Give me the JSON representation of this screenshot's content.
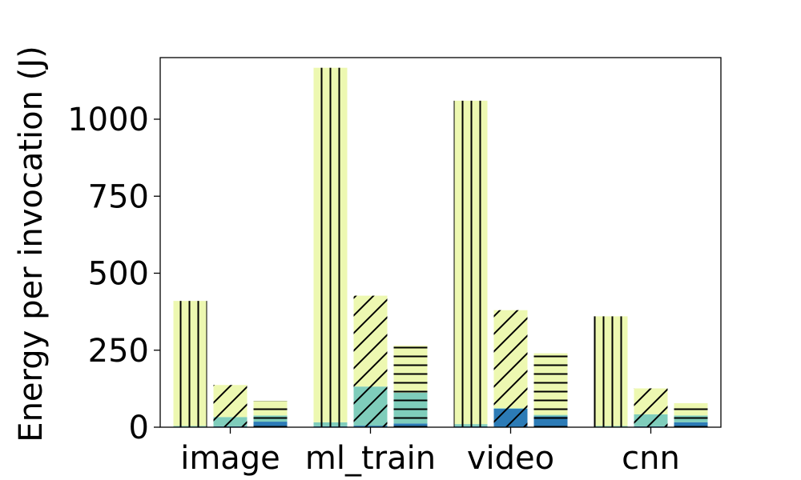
{
  "chart_data": {
    "type": "bar",
    "title": "",
    "xlabel": "",
    "ylabel": "Energy per invocation (J)",
    "ylim": [
      0,
      1200
    ],
    "yticks": [
      0,
      250,
      500,
      750,
      1000
    ],
    "grid": false,
    "legend": "none",
    "categories": [
      "image",
      "ml_train",
      "video",
      "cnn"
    ],
    "series": [
      {
        "hatch": "vertical",
        "segments": [
          {
            "color": "#2c7bb6",
            "values": [
              2,
              3,
              3,
              2
            ]
          },
          {
            "color": "#7fcdbb",
            "values": [
              2,
              13,
              7,
              2
            ]
          },
          {
            "color": "#edf8b1",
            "values": [
              406,
              1151,
              1050,
              356
            ]
          }
        ]
      },
      {
        "hatch": "diagonal",
        "segments": [
          {
            "color": "#2c7bb6",
            "values": [
              3,
              5,
              60,
              3
            ]
          },
          {
            "color": "#7fcdbb",
            "values": [
              30,
              127,
              2,
              39
            ]
          },
          {
            "color": "#edf8b1",
            "values": [
              104,
              295,
              318,
              84
            ]
          }
        ]
      },
      {
        "hatch": "horizontal",
        "segments": [
          {
            "color": "#2c7bb6",
            "values": [
              18,
              12,
              35,
              16
            ]
          },
          {
            "color": "#7fcdbb",
            "values": [
              20,
              100,
              5,
              22
            ]
          },
          {
            "color": "#edf8b1",
            "values": [
              47,
              153,
              200,
              40
            ]
          }
        ]
      }
    ]
  }
}
